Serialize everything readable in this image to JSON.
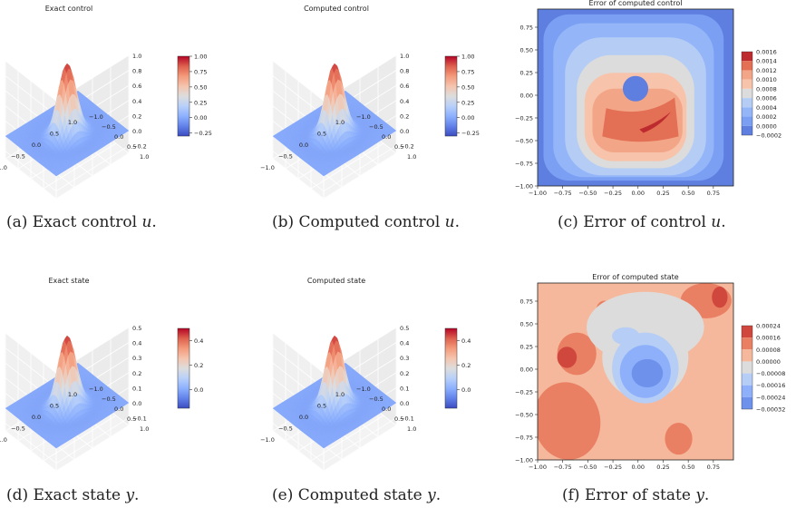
{
  "figure": {
    "captions": [
      {
        "label": "(a) Exact control",
        "var": "u",
        "end": "."
      },
      {
        "label": "(b) Computed control",
        "var": "u",
        "end": "."
      },
      {
        "label": "(c) Error of control",
        "var": "u",
        "end": "."
      },
      {
        "label": "(d) Exact state",
        "var": "y",
        "end": "."
      },
      {
        "label": "(e) Computed state",
        "var": "y",
        "end": "."
      },
      {
        "label": "(f) Error of state",
        "var": "y",
        "end": "."
      }
    ]
  },
  "chart_data": [
    {
      "type": "surface",
      "title": "Exact control",
      "x_ticks": [
        "−1.0",
        "−0.5",
        "0.0",
        "0.5",
        "1.0"
      ],
      "y_ticks": [
        "−1.0",
        "−0.5",
        "0.0",
        "0.5",
        "1.0"
      ],
      "z_ticks": [
        "−0.2",
        "0.0",
        "0.2",
        "0.4",
        "0.6",
        "0.8",
        "1.0"
      ],
      "z_range": [
        -0.3,
        1.0
      ],
      "peak": 1.0,
      "colorbar_ticks": [
        "1.00",
        "0.75",
        "0.50",
        "0.25",
        "0.00",
        "−0.25"
      ],
      "colorbar_range": [
        -0.3,
        1.0
      ],
      "colormap": "coolwarm"
    },
    {
      "type": "surface",
      "title": "Computed control",
      "x_ticks": [
        "−1.0",
        "−0.5",
        "0.0",
        "0.5",
        "1.0"
      ],
      "y_ticks": [
        "−1.0",
        "−0.5",
        "0.0",
        "0.5",
        "1.0"
      ],
      "z_ticks": [
        "−0.2",
        "0.0",
        "0.2",
        "0.4",
        "0.6",
        "0.8",
        "1.0"
      ],
      "z_range": [
        -0.3,
        1.0
      ],
      "peak": 1.0,
      "colorbar_ticks": [
        "1.00",
        "0.75",
        "0.50",
        "0.25",
        "0.00",
        "−0.25"
      ],
      "colorbar_range": [
        -0.3,
        1.0
      ],
      "colormap": "coolwarm"
    },
    {
      "type": "contour",
      "title": "Error of computed control",
      "x_ticks": [
        "−1.00",
        "−0.75",
        "−0.50",
        "−0.25",
        "0.00",
        "0.25",
        "0.50",
        "0.75"
      ],
      "y_ticks": [
        "0.75",
        "0.50",
        "0.25",
        "0.00",
        "−0.25",
        "−0.50",
        "−0.75",
        "−1.00"
      ],
      "levels": [
        "0.0016",
        "0.0014",
        "0.0012",
        "0.0010",
        "0.0008",
        "0.0006",
        "0.0004",
        "0.0002",
        "0.0000",
        "−0.0002"
      ],
      "colors": [
        "#be2b2f",
        "#e36f55",
        "#f3a587",
        "#f7c4ab",
        "#dcdcdc",
        "#b5cdf5",
        "#94b6f9",
        "#7b9ff2",
        "#5e7fe0"
      ]
    },
    {
      "type": "surface",
      "title": "Exact state",
      "x_ticks": [
        "−1.0",
        "−0.5",
        "0.0",
        "0.5",
        "1.0"
      ],
      "y_ticks": [
        "−1.0",
        "−0.5",
        "0.0",
        "0.5",
        "1.0"
      ],
      "z_ticks": [
        "−0.1",
        "0.0",
        "0.1",
        "0.2",
        "0.3",
        "0.4",
        "0.5"
      ],
      "z_range": [
        -0.15,
        0.5
      ],
      "peak": 0.5,
      "colorbar_ticks": [
        "0.4",
        "0.2",
        "0.0"
      ],
      "colorbar_range": [
        -0.15,
        0.5
      ],
      "colormap": "coolwarm"
    },
    {
      "type": "surface",
      "title": "Computed state",
      "x_ticks": [
        "−1.0",
        "−0.5",
        "0.0",
        "0.5",
        "1.0"
      ],
      "y_ticks": [
        "−1.0",
        "−0.5",
        "0.0",
        "0.5",
        "1.0"
      ],
      "z_ticks": [
        "−0.1",
        "0.0",
        "0.1",
        "0.2",
        "0.3",
        "0.4",
        "0.5"
      ],
      "z_range": [
        -0.15,
        0.5
      ],
      "peak": 0.5,
      "colorbar_ticks": [
        "0.4",
        "0.2",
        "0.0"
      ],
      "colorbar_range": [
        -0.15,
        0.5
      ],
      "colormap": "coolwarm"
    },
    {
      "type": "contour",
      "title": "Error of computed state",
      "x_ticks": [
        "−1.00",
        "−0.75",
        "−0.50",
        "−0.25",
        "0.00",
        "0.25",
        "0.50",
        "0.75"
      ],
      "y_ticks": [
        "0.75",
        "0.50",
        "0.25",
        "0.00",
        "−0.25",
        "−0.50",
        "−0.75",
        "−1.00"
      ],
      "levels": [
        "0.00024",
        "0.00016",
        "0.00008",
        "0.00000",
        "−0.00008",
        "−0.00016",
        "−0.00024",
        "−0.00032"
      ],
      "colors": [
        "#d0473d",
        "#ea8063",
        "#f6b89c",
        "#dcdcdc",
        "#b6cdf5",
        "#8eb0fb",
        "#6e91eb"
      ]
    }
  ]
}
